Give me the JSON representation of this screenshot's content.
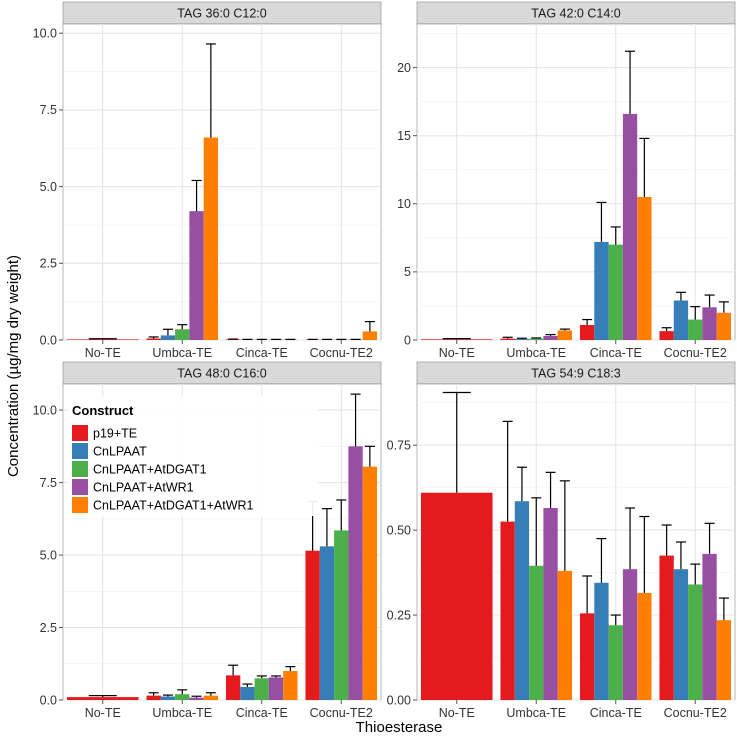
{
  "chart_data": {
    "type": "bar",
    "figure": {
      "xlabel": "Thioesterase",
      "ylabel": "Concentration (µg/mg dry weight)"
    },
    "legend": {
      "title": "Construct",
      "placement": "inside-top-left of bottom-left panel",
      "entries": [
        {
          "name": "p19+TE",
          "color": "#e41a1c"
        },
        {
          "name": "CnLPAAT",
          "color": "#377eb8"
        },
        {
          "name": "CnLPAAT+AtDGAT1",
          "color": "#4daf4a"
        },
        {
          "name": "CnLPAAT+AtWR1",
          "color": "#984ea3"
        },
        {
          "name": "CnLPAAT+AtDGAT1+AtWR1",
          "color": "#ff7f00"
        }
      ]
    },
    "categories": [
      "No-TE",
      "Umbca-TE",
      "Cinca-TE",
      "Cocnu-TE2"
    ],
    "panels": [
      {
        "title": "TAG 36:0 C12:0",
        "ylim": [
          0,
          10.3
        ],
        "yticks": [
          0,
          2.5,
          5,
          7.5,
          10
        ],
        "ytick_labels": [
          "0.0",
          "2.5",
          "5.0",
          "7.5",
          "10.0"
        ],
        "groups": [
          {
            "category": "No-TE",
            "bars": [
              {
                "series": "p19+TE",
                "value": 0.02,
                "error": 0.02
              }
            ]
          },
          {
            "category": "Umbca-TE",
            "bars": [
              {
                "series": "p19+TE",
                "value": 0.05,
                "error": 0.05
              },
              {
                "series": "CnLPAAT",
                "value": 0.15,
                "error": 0.2
              },
              {
                "series": "CnLPAAT+AtDGAT1",
                "value": 0.35,
                "error": 0.15
              },
              {
                "series": "CnLPAAT+AtWR1",
                "value": 4.2,
                "error": 1.0
              },
              {
                "series": "CnLPAAT+AtDGAT1+AtWR1",
                "value": 6.6,
                "error": 3.05
              }
            ]
          },
          {
            "category": "Cinca-TE",
            "bars": [
              {
                "series": "p19+TE",
                "value": 0.02,
                "error": 0.01
              },
              {
                "series": "CnLPAAT",
                "value": 0.01,
                "error": 0.01
              },
              {
                "series": "CnLPAAT+AtDGAT1",
                "value": 0.01,
                "error": 0.01
              },
              {
                "series": "CnLPAAT+AtWR1",
                "value": 0.01,
                "error": 0.01
              },
              {
                "series": "CnLPAAT+AtDGAT1+AtWR1",
                "value": 0.01,
                "error": 0.01
              }
            ]
          },
          {
            "category": "Cocnu-TE2",
            "bars": [
              {
                "series": "p19+TE",
                "value": 0.01,
                "error": 0.01
              },
              {
                "series": "CnLPAAT",
                "value": 0.01,
                "error": 0.01
              },
              {
                "series": "CnLPAAT+AtDGAT1",
                "value": 0.01,
                "error": 0.01
              },
              {
                "series": "CnLPAAT+AtWR1",
                "value": 0.01,
                "error": 0.01
              },
              {
                "series": "CnLPAAT+AtDGAT1+AtWR1",
                "value": 0.28,
                "error": 0.32
              }
            ]
          }
        ]
      },
      {
        "title": "TAG 42:0 C14:0",
        "ylim": [
          0,
          23.2
        ],
        "yticks": [
          0,
          5,
          10,
          15,
          20
        ],
        "ytick_labels": [
          "0",
          "5",
          "10",
          "15",
          "20"
        ],
        "groups": [
          {
            "category": "No-TE",
            "bars": [
              {
                "series": "p19+TE",
                "value": 0.05,
                "error": 0.05
              }
            ]
          },
          {
            "category": "Umbca-TE",
            "bars": [
              {
                "series": "p19+TE",
                "value": 0.1,
                "error": 0.1
              },
              {
                "series": "CnLPAAT",
                "value": 0.08,
                "error": 0.05
              },
              {
                "series": "CnLPAAT+AtDGAT1",
                "value": 0.1,
                "error": 0.05
              },
              {
                "series": "CnLPAAT+AtWR1",
                "value": 0.3,
                "error": 0.1
              },
              {
                "series": "CnLPAAT+AtDGAT1+AtWR1",
                "value": 0.7,
                "error": 0.1
              }
            ]
          },
          {
            "category": "Cinca-TE",
            "bars": [
              {
                "series": "p19+TE",
                "value": 1.1,
                "error": 0.4
              },
              {
                "series": "CnLPAAT",
                "value": 7.2,
                "error": 2.9
              },
              {
                "series": "CnLPAAT+AtDGAT1",
                "value": 7.0,
                "error": 1.3
              },
              {
                "series": "CnLPAAT+AtWR1",
                "value": 16.6,
                "error": 4.6
              },
              {
                "series": "CnLPAAT+AtDGAT1+AtWR1",
                "value": 10.5,
                "error": 4.3
              }
            ]
          },
          {
            "category": "Cocnu-TE2",
            "bars": [
              {
                "series": "p19+TE",
                "value": 0.65,
                "error": 0.25
              },
              {
                "series": "CnLPAAT",
                "value": 2.9,
                "error": 0.6
              },
              {
                "series": "CnLPAAT+AtDGAT1",
                "value": 1.5,
                "error": 0.95
              },
              {
                "series": "CnLPAAT+AtWR1",
                "value": 2.4,
                "error": 0.9
              },
              {
                "series": "CnLPAAT+AtDGAT1+AtWR1",
                "value": 2.0,
                "error": 0.8
              }
            ]
          }
        ]
      },
      {
        "title": "TAG 48:0 C16:0",
        "ylim": [
          0,
          10.9
        ],
        "yticks": [
          0,
          2.5,
          5,
          7.5,
          10
        ],
        "ytick_labels": [
          "0.0",
          "2.5",
          "5.0",
          "7.5",
          "10.0"
        ],
        "groups": [
          {
            "category": "No-TE",
            "bars": [
              {
                "series": "p19+TE",
                "value": 0.1,
                "error": 0.05
              }
            ]
          },
          {
            "category": "Umbca-TE",
            "bars": [
              {
                "series": "p19+TE",
                "value": 0.15,
                "error": 0.1
              },
              {
                "series": "CnLPAAT",
                "value": 0.12,
                "error": 0.05
              },
              {
                "series": "CnLPAAT+AtDGAT1",
                "value": 0.2,
                "error": 0.15
              },
              {
                "series": "CnLPAAT+AtWR1",
                "value": 0.08,
                "error": 0.05
              },
              {
                "series": "CnLPAAT+AtDGAT1+AtWR1",
                "value": 0.15,
                "error": 0.1
              }
            ]
          },
          {
            "category": "Cinca-TE",
            "bars": [
              {
                "series": "p19+TE",
                "value": 0.85,
                "error": 0.35
              },
              {
                "series": "CnLPAAT",
                "value": 0.45,
                "error": 0.1
              },
              {
                "series": "CnLPAAT+AtDGAT1",
                "value": 0.75,
                "error": 0.08
              },
              {
                "series": "CnLPAAT+AtWR1",
                "value": 0.78,
                "error": 0.05
              },
              {
                "series": "CnLPAAT+AtDGAT1+AtWR1",
                "value": 1.0,
                "error": 0.15
              }
            ]
          },
          {
            "category": "Cocnu-TE2",
            "bars": [
              {
                "series": "p19+TE",
                "value": 5.15,
                "error": 1.7
              },
              {
                "series": "CnLPAAT",
                "value": 5.3,
                "error": 1.3
              },
              {
                "series": "CnLPAAT+AtDGAT1",
                "value": 5.85,
                "error": 1.05
              },
              {
                "series": "CnLPAAT+AtWR1",
                "value": 8.75,
                "error": 1.8
              },
              {
                "series": "CnLPAAT+AtDGAT1+AtWR1",
                "value": 8.05,
                "error": 0.7
              }
            ]
          }
        ]
      },
      {
        "title": "TAG 54:9 C18:3",
        "ylim": [
          0,
          0.93
        ],
        "yticks": [
          0,
          0.25,
          0.5,
          0.75
        ],
        "ytick_labels": [
          "0.00",
          "0.25",
          "0.50",
          "0.75"
        ],
        "groups": [
          {
            "category": "No-TE",
            "bars": [
              {
                "series": "p19+TE",
                "value": 0.61,
                "error": 0.295
              }
            ]
          },
          {
            "category": "Umbca-TE",
            "bars": [
              {
                "series": "p19+TE",
                "value": 0.525,
                "error": 0.295
              },
              {
                "series": "CnLPAAT",
                "value": 0.585,
                "error": 0.1
              },
              {
                "series": "CnLPAAT+AtDGAT1",
                "value": 0.395,
                "error": 0.2
              },
              {
                "series": "CnLPAAT+AtWR1",
                "value": 0.565,
                "error": 0.105
              },
              {
                "series": "CnLPAAT+AtDGAT1+AtWR1",
                "value": 0.38,
                "error": 0.265
              }
            ]
          },
          {
            "category": "Cinca-TE",
            "bars": [
              {
                "series": "p19+TE",
                "value": 0.255,
                "error": 0.11
              },
              {
                "series": "CnLPAAT",
                "value": 0.345,
                "error": 0.13
              },
              {
                "series": "CnLPAAT+AtDGAT1",
                "value": 0.22,
                "error": 0.03
              },
              {
                "series": "CnLPAAT+AtWR1",
                "value": 0.385,
                "error": 0.18
              },
              {
                "series": "CnLPAAT+AtDGAT1+AtWR1",
                "value": 0.315,
                "error": 0.225
              }
            ]
          },
          {
            "category": "Cocnu-TE2",
            "bars": [
              {
                "series": "p19+TE",
                "value": 0.425,
                "error": 0.09
              },
              {
                "series": "CnLPAAT",
                "value": 0.385,
                "error": 0.08
              },
              {
                "series": "CnLPAAT+AtDGAT1",
                "value": 0.34,
                "error": 0.06
              },
              {
                "series": "CnLPAAT+AtWR1",
                "value": 0.43,
                "error": 0.09
              },
              {
                "series": "CnLPAAT+AtDGAT1+AtWR1",
                "value": 0.235,
                "error": 0.065
              }
            ]
          }
        ]
      }
    ]
  }
}
